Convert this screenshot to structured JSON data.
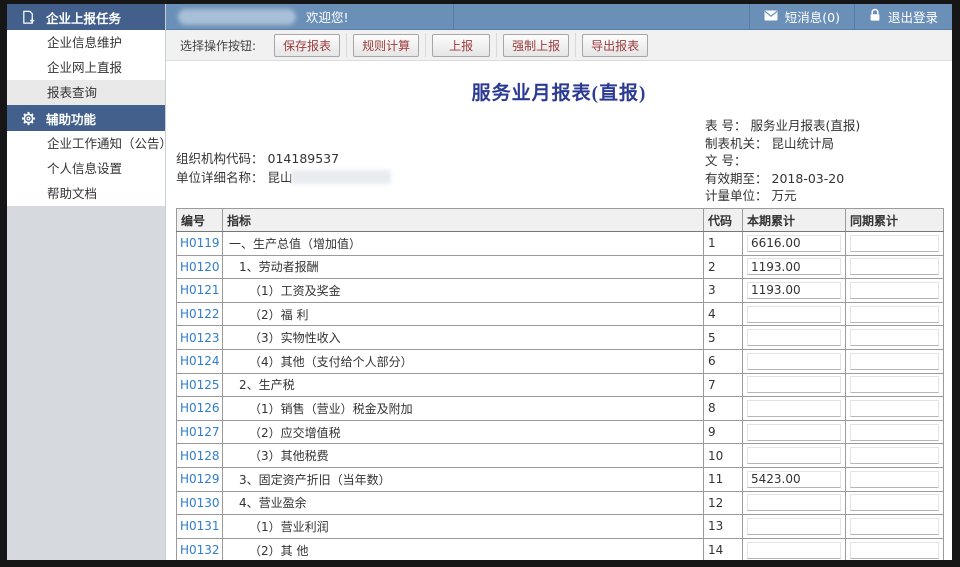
{
  "topbar": {
    "welcome": "欢迎您!",
    "messages_label": "短消息(0)",
    "logout_label": "退出登录"
  },
  "sidebar": {
    "groups": [
      {
        "header": "企业上报任务",
        "icon": "report-doc-icon",
        "items": [
          {
            "label": "企业信息维护",
            "selected": false
          },
          {
            "label": "企业网上直报",
            "selected": false
          },
          {
            "label": "报表查询",
            "selected": true
          }
        ]
      },
      {
        "header": "辅助功能",
        "icon": "gear-icon",
        "items": [
          {
            "label": "企业工作通知（公告）",
            "selected": false
          },
          {
            "label": "个人信息设置",
            "selected": false
          },
          {
            "label": "帮助文档",
            "selected": false
          }
        ]
      }
    ]
  },
  "toolbar": {
    "label": "选择操作按钮:",
    "buttons": [
      "保存报表",
      "规则计算",
      "上报",
      "强制上报",
      "导出报表"
    ]
  },
  "report": {
    "title": "服务业月报表(直报)",
    "org_code_label": "组织机构代码：",
    "org_code": "014189537",
    "unit_name_label": "单位详细名称：",
    "unit_name_visible": "昆山",
    "meta": [
      {
        "label": "表 号：",
        "value": "服务业月报表(直报)"
      },
      {
        "label": "制表机关：",
        "value": "昆山统计局"
      },
      {
        "label": "文 号：",
        "value": ""
      },
      {
        "label": "有效期至：",
        "value": "2018-03-20"
      },
      {
        "label": "计量单位：",
        "value": "万元"
      }
    ]
  },
  "table": {
    "headers": [
      "编号",
      "指标",
      "代码",
      "本期累计",
      "同期累计"
    ],
    "rows": [
      {
        "id": "H0119",
        "indicator": "一、生产总值（增加值）",
        "code": "1",
        "current": "6616.00",
        "same_period": "",
        "indent": 0
      },
      {
        "id": "H0120",
        "indicator": "1、劳动者报酬",
        "code": "2",
        "current": "1193.00",
        "same_period": "",
        "indent": 1
      },
      {
        "id": "H0121",
        "indicator": "（1）工资及奖金",
        "code": "3",
        "current": "1193.00",
        "same_period": "",
        "indent": 2
      },
      {
        "id": "H0122",
        "indicator": "（2）福 利",
        "code": "4",
        "current": "",
        "same_period": "",
        "indent": 2
      },
      {
        "id": "H0123",
        "indicator": "（3）实物性收入",
        "code": "5",
        "current": "",
        "same_period": "",
        "indent": 2
      },
      {
        "id": "H0124",
        "indicator": "（4）其他（支付给个人部分）",
        "code": "6",
        "current": "",
        "same_period": "",
        "indent": 2
      },
      {
        "id": "H0125",
        "indicator": "2、生产税",
        "code": "7",
        "current": "",
        "same_period": "",
        "indent": 1
      },
      {
        "id": "H0126",
        "indicator": "（1）销售（营业）税金及附加",
        "code": "8",
        "current": "",
        "same_period": "",
        "indent": 2
      },
      {
        "id": "H0127",
        "indicator": "（2）应交增值税",
        "code": "9",
        "current": "",
        "same_period": "",
        "indent": 2
      },
      {
        "id": "H0128",
        "indicator": "（3）其他税费",
        "code": "10",
        "current": "",
        "same_period": "",
        "indent": 2
      },
      {
        "id": "H0129",
        "indicator": "3、固定资产折旧（当年数）",
        "code": "11",
        "current": "5423.00",
        "same_period": "",
        "indent": 1
      },
      {
        "id": "H0130",
        "indicator": "4、营业盈余",
        "code": "12",
        "current": "",
        "same_period": "",
        "indent": 1
      },
      {
        "id": "H0131",
        "indicator": "（1）营业利润",
        "code": "13",
        "current": "",
        "same_period": "",
        "indent": 2
      },
      {
        "id": "H0132",
        "indicator": "（2）其 他",
        "code": "14",
        "current": "",
        "same_period": "",
        "indent": 2
      }
    ]
  },
  "theme": {
    "topbar_bg": "#6b90b7",
    "sidebar_header_bg": "#42608b",
    "sidebar_filler": "#d6dade",
    "selected_item_bg": "#e9e9e9",
    "toolbar_bg": "#f1f1f1",
    "title_color": "#2b3a92",
    "link_color": "#2f7ccc",
    "button_text": "#9a3b3b"
  }
}
